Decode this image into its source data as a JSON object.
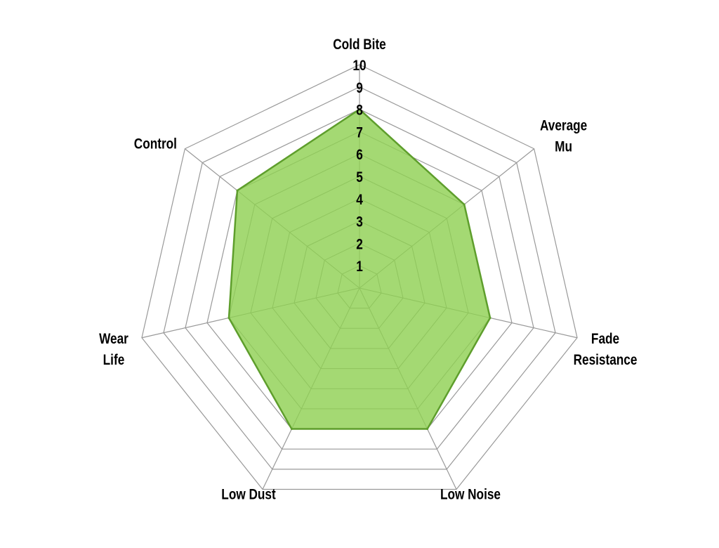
{
  "chart_data": {
    "type": "radar",
    "categories": [
      "Cold Bite",
      "Average Mu",
      "Fade Resistance",
      "Low Noise",
      "Low Dust",
      "Wear Life",
      "Control"
    ],
    "category_lines": [
      [
        "Cold Bite"
      ],
      [
        "Average",
        "Mu"
      ],
      [
        "Fade",
        "Resistance"
      ],
      [
        "Low Noise"
      ],
      [
        "Low Dust"
      ],
      [
        "Wear",
        "Life"
      ],
      [
        "Control"
      ]
    ],
    "values": [
      8,
      6,
      6,
      7,
      7,
      6,
      7
    ],
    "rlim": [
      0,
      10
    ],
    "ticks": [
      "1",
      "2",
      "3",
      "4",
      "5",
      "6",
      "7",
      "8",
      "9",
      "10"
    ],
    "grid": true,
    "colors": {
      "fill": "#a4d973",
      "stroke": "#5e9e2c",
      "grid": "#999999",
      "inner_grid": "#8fc45e"
    }
  }
}
